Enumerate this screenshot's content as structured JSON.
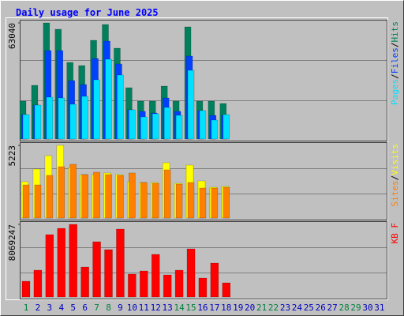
{
  "chart_data": {
    "type": "bar",
    "title": "Daily usage for June 2025",
    "categories": [
      "1",
      "2",
      "3",
      "4",
      "5",
      "6",
      "7",
      "8",
      "9",
      "10",
      "11",
      "12",
      "13",
      "14",
      "15",
      "16",
      "17",
      "18",
      "19",
      "20",
      "21",
      "22",
      "23",
      "24",
      "25",
      "26",
      "27",
      "28",
      "29",
      "30",
      "31"
    ],
    "category_colors": [
      "#008040",
      "#0000c0",
      "#0000c0",
      "#0000c0",
      "#0000c0",
      "#0000c0",
      "#008040",
      "#008040",
      "#0000c0",
      "#0000c0",
      "#0000c0",
      "#0000c0",
      "#0000c0",
      "#008040",
      "#008040",
      "#0000c0",
      "#0000c0",
      "#0000c0",
      "#0000c0",
      "#0000c0",
      "#008040",
      "#008040",
      "#0000c0",
      "#0000c0",
      "#0000c0",
      "#0000c0",
      "#0000c0",
      "#008040",
      "#008040",
      "#0000c0",
      "#0000c0"
    ],
    "legend_separator": "/",
    "grid_divisions": 3,
    "panels": [
      {
        "ylim": [
          0,
          63040
        ],
        "yticks": [
          63040
        ],
        "series": [
          {
            "name": "Hits",
            "color": "#00805c",
            "values": [
              20585,
              29162,
              63040,
              59609,
              41598,
              39883,
              53605,
              62182,
              49317,
              27875,
              20585,
              20585,
              28733,
              20585,
              60897,
              20585,
              20585,
              19298,
              null,
              null,
              null,
              null,
              null,
              null,
              null,
              null,
              null,
              null,
              null,
              null,
              null
            ]
          },
          {
            "name": "Files",
            "color": "#0040ff",
            "values": [
              13294,
              18441,
              48031,
              48031,
              31735,
              29591,
              43743,
              53177,
              40741,
              15867,
              15010,
              14152,
              22300,
              15010,
              45029,
              15439,
              12865,
              12865,
              null,
              null,
              null,
              null,
              null,
              null,
              null,
              null,
              null,
              null,
              null,
              null,
              null
            ]
          },
          {
            "name": "Pages",
            "color": "#00e0ff",
            "values": [
              13294,
              18441,
              22730,
              22300,
              18870,
              23158,
              32163,
              43314,
              34737,
              15867,
              12008,
              13723,
              17154,
              12865,
              37310,
              15439,
              10292,
              13294,
              null,
              null,
              null,
              null,
              null,
              null,
              null,
              null,
              null,
              null,
              null,
              null,
              null
            ]
          }
        ]
      },
      {
        "ylim": [
          0,
          5223
        ],
        "yticks": [
          5223
        ],
        "series": [
          {
            "name": "Visits",
            "color": "#ffff00",
            "values": [
              2612,
              3520,
              4485,
              5223,
              3633,
              3122,
              3122,
              3236,
              3122,
              2612,
              2555,
              2555,
              3974,
              2498,
              3804,
              2668,
              2214,
              2271,
              null,
              null,
              null,
              null,
              null,
              null,
              null,
              null,
              null,
              null,
              null,
              null,
              null
            ]
          },
          {
            "name": "Sites",
            "color": "#ff8000",
            "values": [
              2384,
              2384,
              3066,
              3690,
              3860,
              3122,
              3293,
              3122,
              3066,
              3236,
              2555,
              2498,
              3463,
              2441,
              2555,
              2157,
              2157,
              2214,
              null,
              null,
              null,
              null,
              null,
              null,
              null,
              null,
              null,
              null,
              null,
              null,
              null
            ]
          }
        ]
      },
      {
        "ylim": [
          0,
          8069247
        ],
        "yticks": [
          8069247
        ],
        "series": [
          {
            "name": "KB F",
            "color": "#ff0000",
            "values": [
              1754185,
              2982110,
              6929027,
              7630698,
              8069247,
              3332946,
              6139644,
              5262552,
              7542989,
              2543569,
              2894410,
              4736297,
              2455858,
              2982110,
              5350261,
              2105016,
              3771494,
              1578762,
              null,
              null,
              null,
              null,
              null,
              null,
              null,
              null,
              null,
              null,
              null,
              null,
              null
            ]
          }
        ]
      }
    ]
  }
}
